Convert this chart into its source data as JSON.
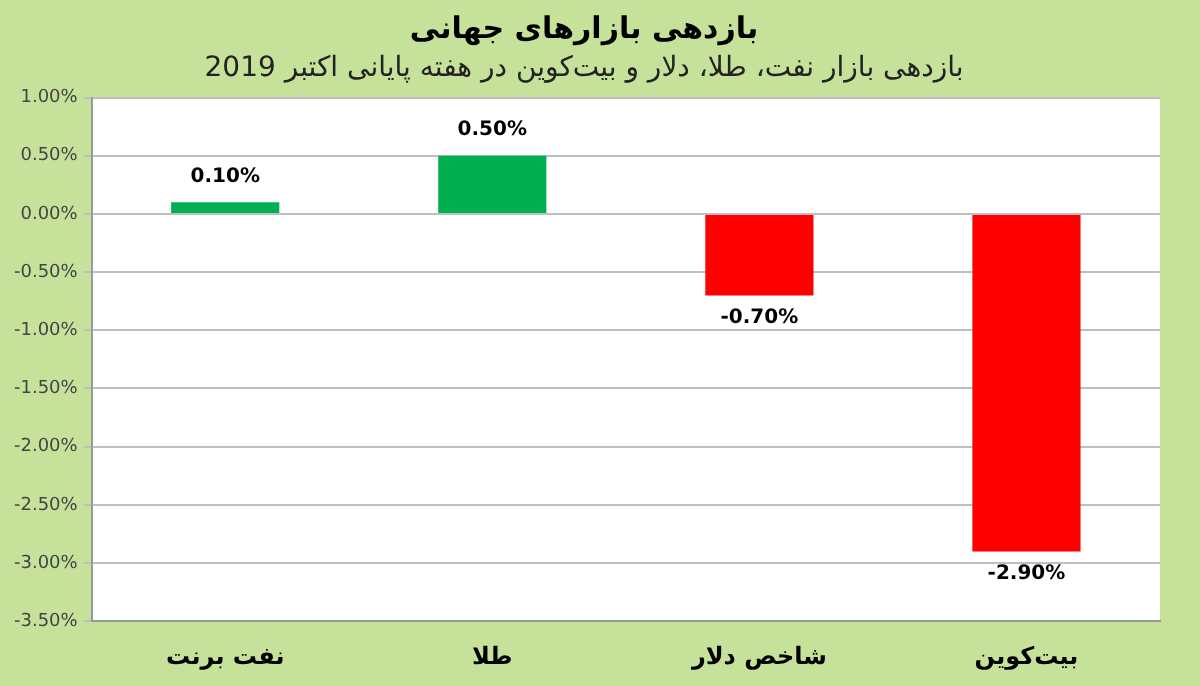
{
  "chart_data": {
    "type": "bar",
    "title": "بازدهی بازارهای جهانی",
    "subtitle": "بازدهی بازار نفت، طلا، دلار و بیت‌کوین در هفته پایانی اکتبر 2019",
    "categories": [
      "نفت برنت",
      "طلا",
      "شاخص دلار",
      "بیت‌کوین"
    ],
    "values": [
      0.1,
      0.5,
      -0.7,
      -2.9
    ],
    "colors": [
      "#00b050",
      "#00b050",
      "#ff0000",
      "#ff0000"
    ],
    "value_labels": [
      "0.10%",
      "0.50%",
      "-0.70%",
      "-2.90%"
    ],
    "ylim": [
      -3.5,
      1
    ],
    "yticks": [
      {
        "value": 1,
        "label": "1.00%"
      },
      {
        "value": 0.5,
        "label": "0.50%"
      },
      {
        "value": 0,
        "label": "0.00%"
      },
      {
        "value": -0.5,
        "label": "-0.50%"
      },
      {
        "value": -1,
        "label": "-1.00%"
      },
      {
        "value": -1.5,
        "label": "-1.50%"
      },
      {
        "value": -2,
        "label": "-2.00%"
      },
      {
        "value": -2.5,
        "label": "-2.50%"
      },
      {
        "value": -3,
        "label": "-3.00%"
      },
      {
        "value": -3.5,
        "label": "-3.50%"
      }
    ],
    "grid": "y"
  }
}
